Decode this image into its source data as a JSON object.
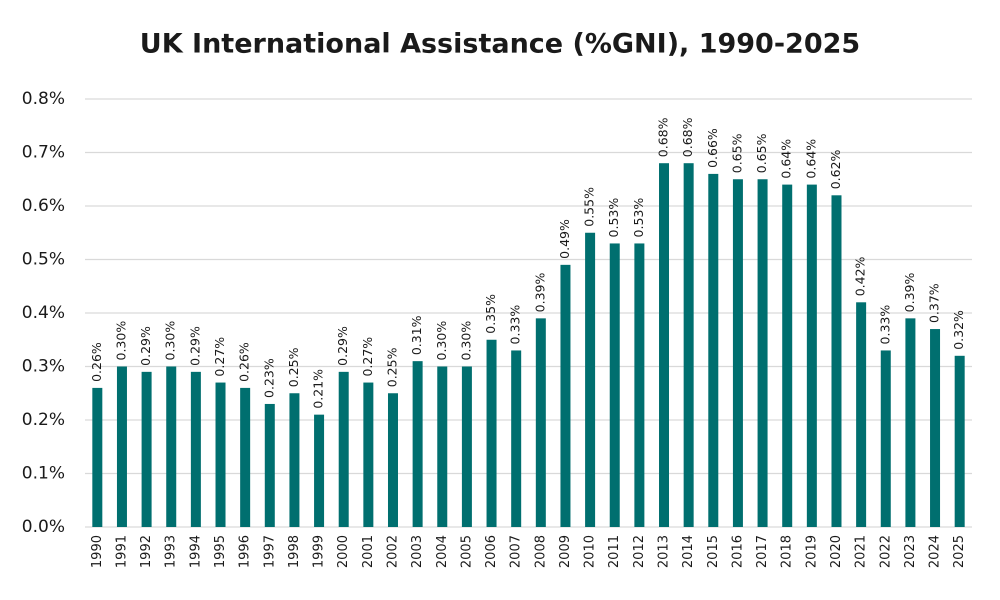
{
  "chart_data": {
    "type": "bar",
    "title": "UK International Assistance (%GNI), 1990-2025",
    "categories": [
      "1990",
      "1991",
      "1992",
      "1993",
      "1994",
      "1995",
      "1996",
      "1997",
      "1998",
      "1999",
      "2000",
      "2001",
      "2002",
      "2003",
      "2004",
      "2005",
      "2006",
      "2007",
      "2008",
      "2009",
      "2010",
      "2011",
      "2012",
      "2013",
      "2014",
      "2015",
      "2016",
      "2017",
      "2018",
      "2019",
      "2020",
      "2021",
      "2022",
      "2023",
      "2024",
      "2025"
    ],
    "values": [
      0.26,
      0.3,
      0.29,
      0.3,
      0.29,
      0.27,
      0.26,
      0.23,
      0.25,
      0.21,
      0.29,
      0.27,
      0.25,
      0.31,
      0.3,
      0.3,
      0.35,
      0.33,
      0.39,
      0.49,
      0.55,
      0.53,
      0.53,
      0.68,
      0.68,
      0.66,
      0.65,
      0.65,
      0.64,
      0.64,
      0.62,
      0.42,
      0.33,
      0.39,
      0.37,
      0.32
    ],
    "value_labels": [
      "0.26%",
      "0.30%",
      "0.29%",
      "0.30%",
      "0.29%",
      "0.27%",
      "0.26%",
      "0.23%",
      "0.25%",
      "0.21%",
      "0.29%",
      "0.27%",
      "0.25%",
      "0.31%",
      "0.30%",
      "0.30%",
      "0.35%",
      "0.33%",
      "0.39%",
      "0.49%",
      "0.55%",
      "0.53%",
      "0.53%",
      "0.68%",
      "0.68%",
      "0.66%",
      "0.65%",
      "0.65%",
      "0.64%",
      "0.64%",
      "0.62%",
      "0.42%",
      "0.33%",
      "0.39%",
      "0.37%",
      "0.32%"
    ],
    "color": "#006f6f",
    "ylim": [
      0,
      0.8
    ],
    "yticks": [
      {
        "value": 0,
        "label": "0.0%"
      },
      {
        "value": 0.1,
        "label": "0.1%"
      },
      {
        "value": 0.2,
        "label": "0.2%"
      },
      {
        "value": 0.3,
        "label": "0.3%"
      },
      {
        "value": 0.4,
        "label": "0.4%"
      },
      {
        "value": 0.5,
        "label": "0.5%"
      },
      {
        "value": 0.6,
        "label": "0.6%"
      },
      {
        "value": 0.7,
        "label": "0.7%"
      },
      {
        "value": 0.8,
        "label": "0.8%"
      }
    ],
    "grid": true
  }
}
